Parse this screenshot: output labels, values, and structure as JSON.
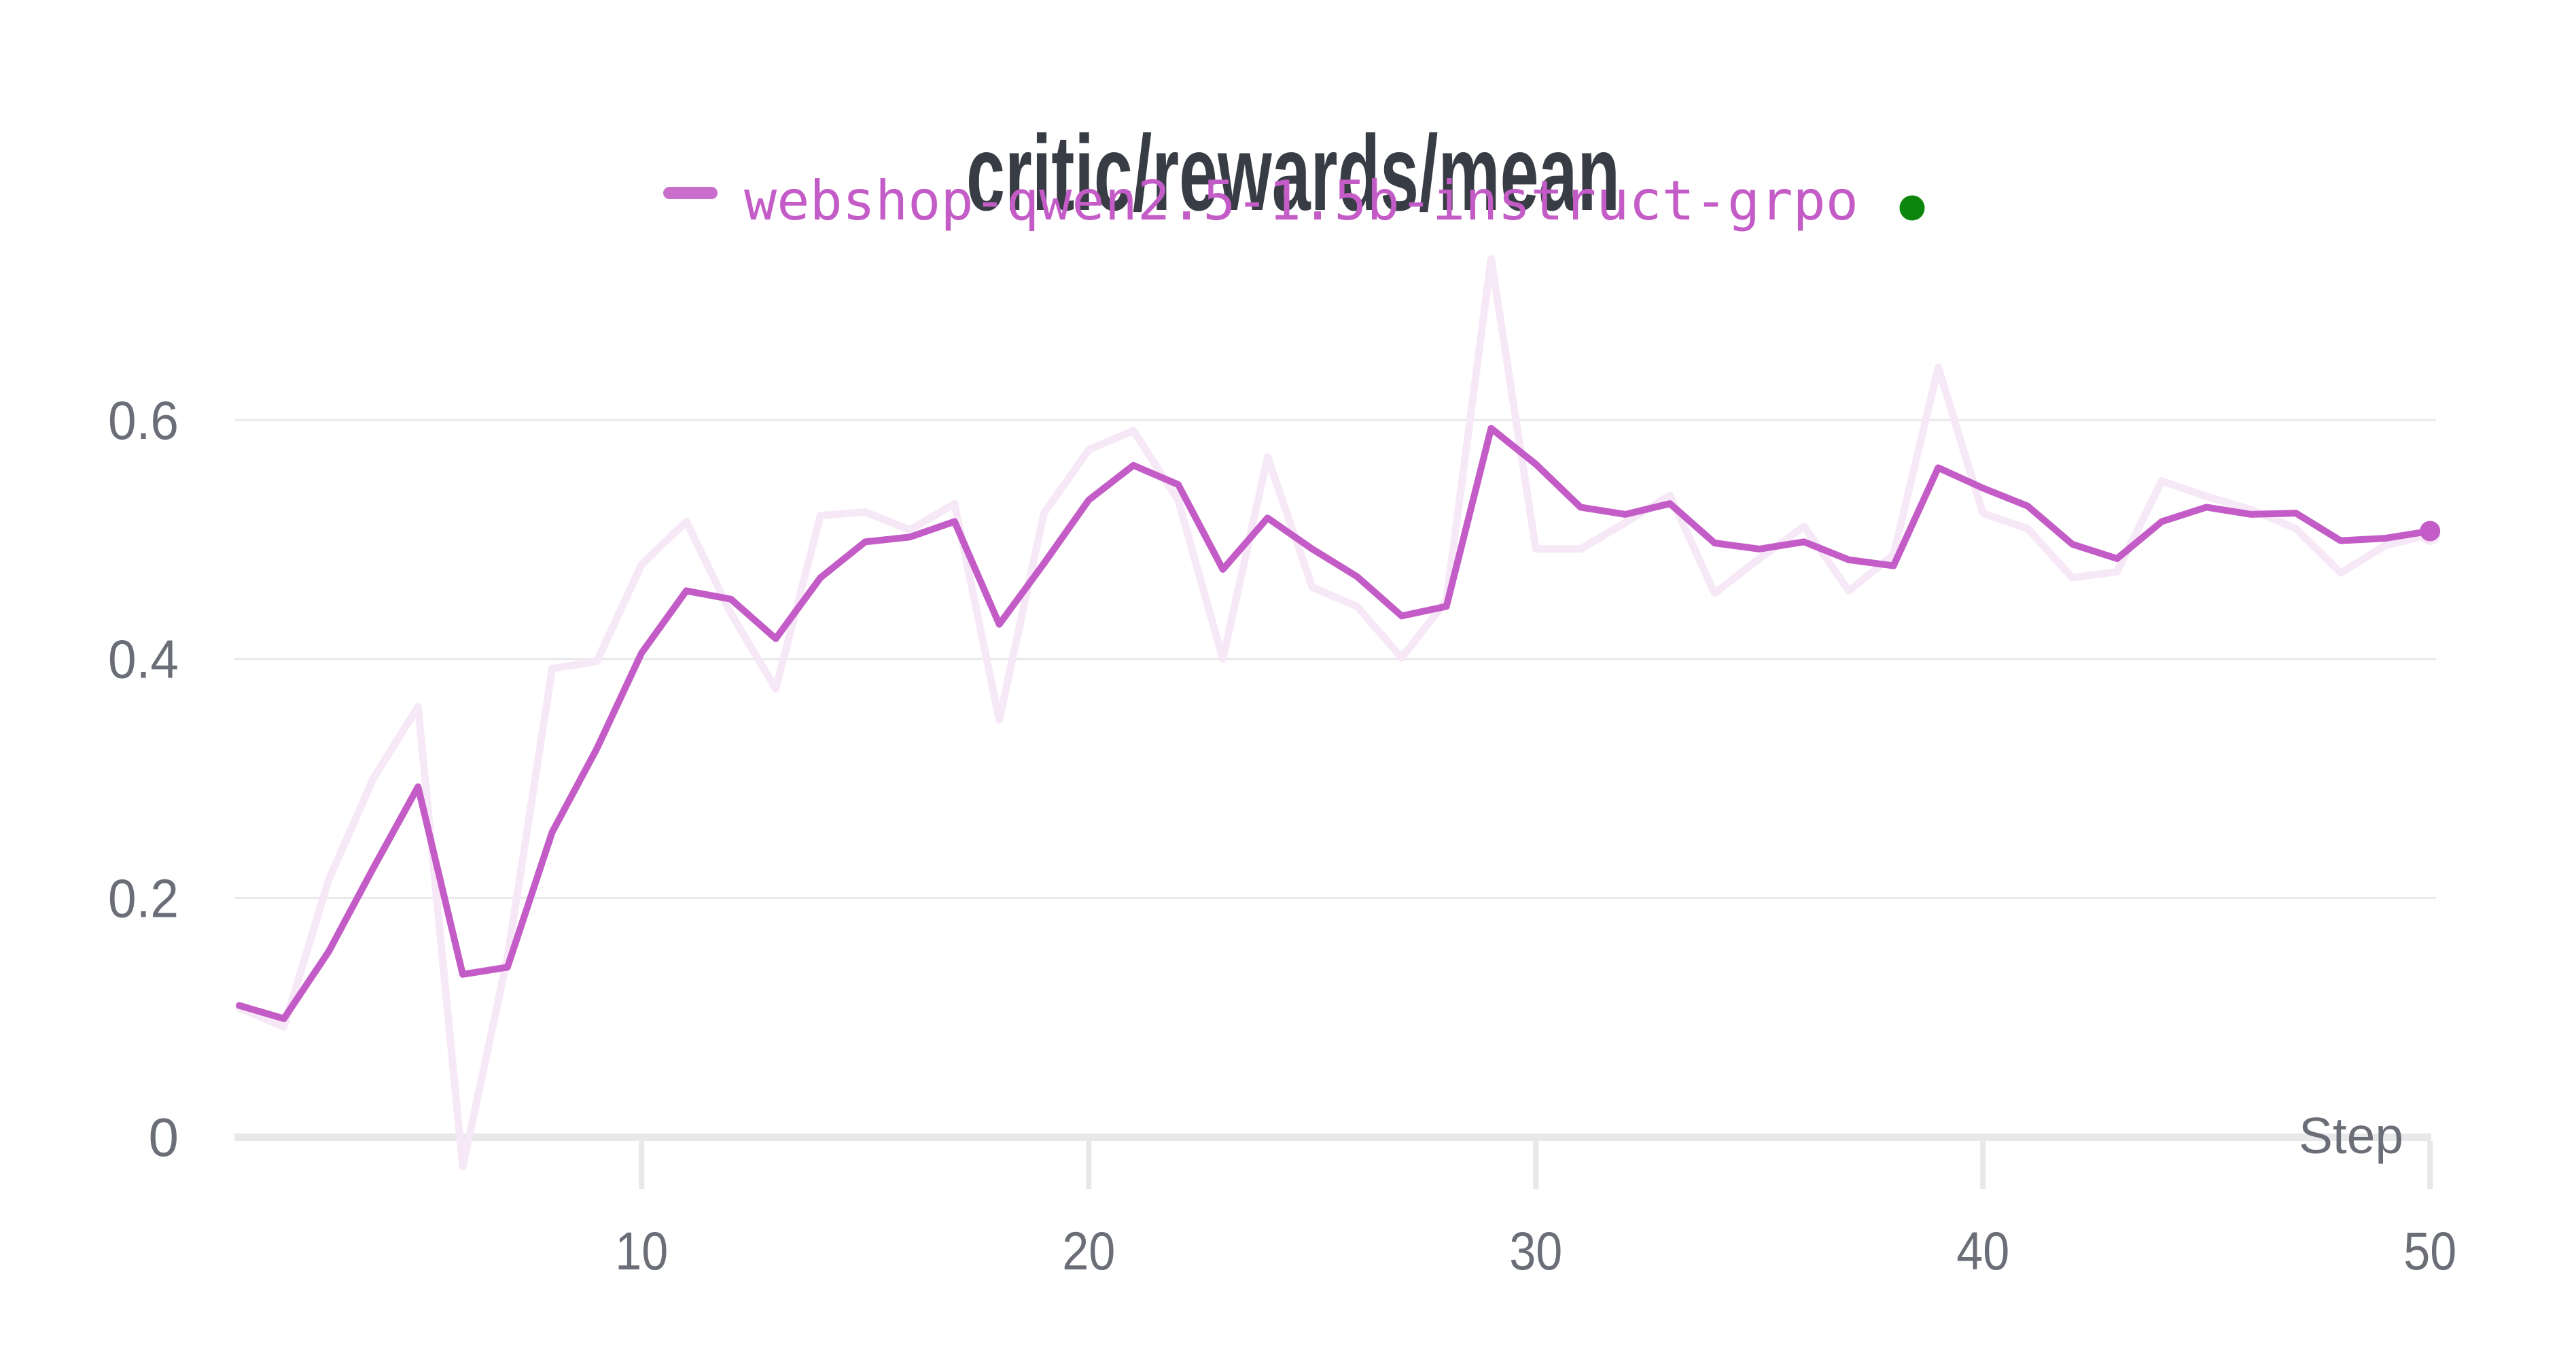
{
  "title": "critic/rewards/mean",
  "legend": {
    "series_label": "webshop-qwen2.5-1.5b-instruct-grpo",
    "dash_color": "#C96FCB",
    "label_color": "#C45CC7",
    "status_dot_color": "#0C870C"
  },
  "axes": {
    "x_title": "Step",
    "x_tick_labels": [
      "10",
      "20",
      "30",
      "40",
      "50"
    ],
    "y_tick_labels": [
      "0",
      "0.2",
      "0.4",
      "0.6"
    ]
  },
  "colors": {
    "line": "#C45CC7",
    "raw_line": "#F6E8F6",
    "gridline": "#E9E9EC",
    "axis_baseline": "#E8E8EB",
    "title_text": "#383C44",
    "axis_text": "#6B6D77"
  },
  "chart_data": {
    "type": "line",
    "title": "critic/rewards/mean",
    "xlabel": "Step",
    "ylabel": "",
    "grid": "horizontal",
    "legend_position": "top",
    "xlim": [
      1,
      50
    ],
    "ylim": [
      -0.07,
      0.76
    ],
    "x_ticks": [
      10,
      20,
      30,
      40,
      50
    ],
    "y_ticks": [
      0,
      0.2,
      0.4,
      0.6
    ],
    "x": [
      1,
      2,
      3,
      4,
      5,
      6,
      7,
      8,
      9,
      10,
      11,
      12,
      13,
      14,
      15,
      16,
      17,
      18,
      19,
      20,
      21,
      22,
      23,
      24,
      25,
      26,
      27,
      28,
      29,
      30,
      31,
      32,
      33,
      34,
      35,
      36,
      37,
      38,
      39,
      40,
      41,
      42,
      43,
      44,
      45,
      46,
      47,
      48,
      49,
      50
    ],
    "series": [
      {
        "name": "webshop-qwen2.5-1.5b-instruct-grpo (smoothed)",
        "role": "smoothed",
        "values": [
          0.11,
          0.099,
          0.155,
          0.225,
          0.293,
          0.136,
          0.142,
          0.255,
          0.325,
          0.405,
          0.457,
          0.45,
          0.417,
          0.468,
          0.498,
          0.502,
          0.515,
          0.429,
          0.48,
          0.533,
          0.562,
          0.546,
          0.475,
          0.518,
          0.492,
          0.469,
          0.436,
          0.444,
          0.593,
          0.563,
          0.527,
          0.521,
          0.53,
          0.497,
          0.492,
          0.498,
          0.483,
          0.478,
          0.56,
          0.543,
          0.528,
          0.496,
          0.484,
          0.515,
          0.527,
          0.521,
          0.522,
          0.499,
          0.501,
          0.507
        ]
      },
      {
        "name": "webshop-qwen2.5-1.5b-instruct-grpo (raw)",
        "role": "raw",
        "values": [
          0.108,
          0.092,
          0.215,
          0.3,
          0.36,
          -0.025,
          0.15,
          0.392,
          0.398,
          0.479,
          0.515,
          0.438,
          0.375,
          0.52,
          0.523,
          0.508,
          0.53,
          0.349,
          0.522,
          0.575,
          0.591,
          0.533,
          0.4,
          0.569,
          0.46,
          0.444,
          0.401,
          0.449,
          0.735,
          0.492,
          0.492,
          0.514,
          0.537,
          0.455,
          0.484,
          0.511,
          0.457,
          0.487,
          0.644,
          0.522,
          0.509,
          0.468,
          0.473,
          0.549,
          0.536,
          0.525,
          0.509,
          0.472,
          0.495,
          0.504
        ]
      }
    ],
    "final_point": {
      "step": 50,
      "value": 0.507
    }
  }
}
